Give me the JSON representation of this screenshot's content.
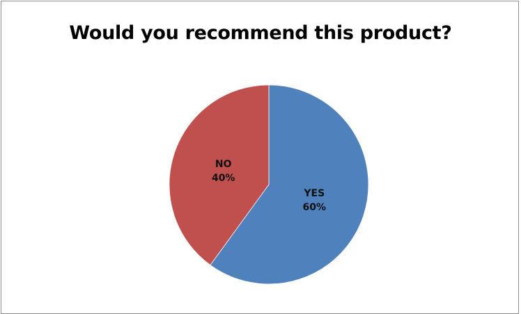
{
  "chart_data": {
    "type": "pie",
    "title": "Would you recommend this product?",
    "slices": [
      {
        "label": "YES",
        "value": 60,
        "value_label": "60%",
        "color": "#4f81bd"
      },
      {
        "label": "NO",
        "value": 40,
        "value_label": "40%",
        "color": "#c0504d"
      }
    ],
    "start": "12 o'clock",
    "direction": "clockwise",
    "legend": "none"
  }
}
